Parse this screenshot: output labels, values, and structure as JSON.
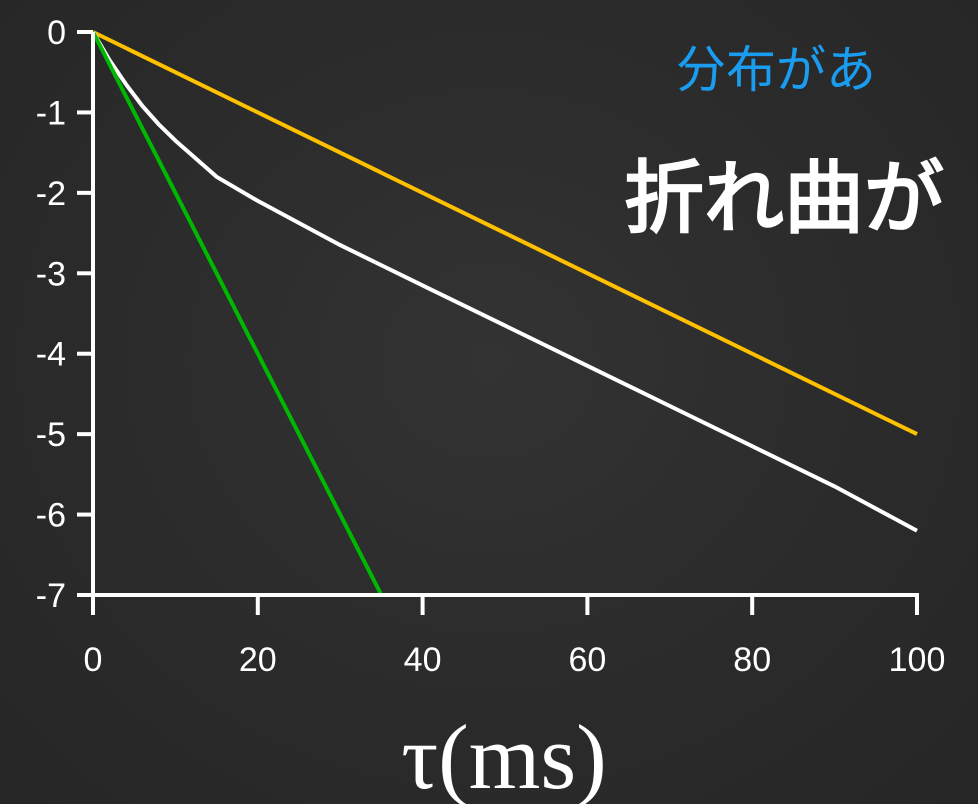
{
  "slide": {
    "subtitle": "分布があ",
    "title": "折れ曲が"
  },
  "chart_data": {
    "type": "line",
    "xlabel": "τ(ms)",
    "ylabel": "",
    "xlim": [
      0,
      100
    ],
    "ylim": [
      -7,
      0
    ],
    "x_ticks": [
      0,
      20,
      40,
      60,
      80,
      100
    ],
    "y_ticks": [
      0,
      -1,
      -2,
      -3,
      -4,
      -5,
      -6,
      -7
    ],
    "grid": false,
    "legend": "none",
    "series": [
      {
        "color": "#ffc000",
        "x": [
          0,
          100
        ],
        "y": [
          0,
          -5.0
        ]
      },
      {
        "color": "#ffffff",
        "x": [
          0,
          2,
          4,
          6,
          8,
          10,
          15,
          20,
          30,
          40,
          50,
          60,
          70,
          80,
          90,
          100
        ],
        "y": [
          0,
          -0.35,
          -0.65,
          -0.92,
          -1.15,
          -1.35,
          -1.8,
          -2.1,
          -2.65,
          -3.15,
          -3.65,
          -4.15,
          -4.65,
          -5.15,
          -5.65,
          -6.2
        ]
      },
      {
        "color": "#00b800",
        "x": [
          0,
          35
        ],
        "y": [
          0,
          -7.0
        ]
      }
    ]
  }
}
